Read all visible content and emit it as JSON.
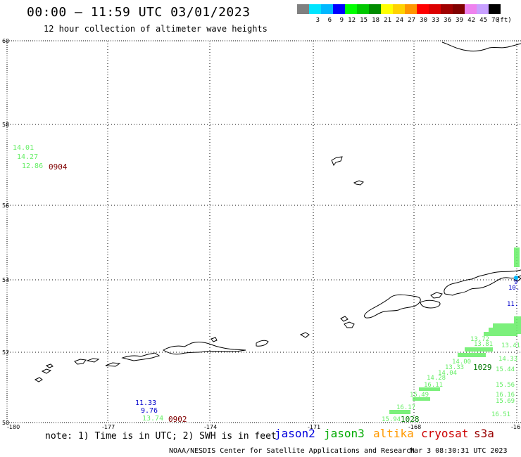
{
  "header": {
    "title": "00:00 – 11:59 UTC 03/01/2023",
    "subtitle": "12 hour collection of altimeter wave heights"
  },
  "legend": {
    "unit": "(ft)",
    "swatches": [
      {
        "color": "#808080",
        "label": ""
      },
      {
        "color": "#00e5ff",
        "label": "3"
      },
      {
        "color": "#00b8ff",
        "label": "6"
      },
      {
        "color": "#0000ff",
        "label": "9"
      },
      {
        "color": "#00ff00",
        "label": "12"
      },
      {
        "color": "#00c800",
        "label": "15"
      },
      {
        "color": "#008c00",
        "label": "18"
      },
      {
        "color": "#ffff00",
        "label": "21"
      },
      {
        "color": "#ffd200",
        "label": "24"
      },
      {
        "color": "#ff9600",
        "label": "27"
      },
      {
        "color": "#ff0000",
        "label": "30"
      },
      {
        "color": "#dc0000",
        "label": "33"
      },
      {
        "color": "#a00000",
        "label": "36"
      },
      {
        "color": "#800000",
        "label": "39"
      },
      {
        "color": "#ee82ee",
        "label": "42"
      },
      {
        "color": "#c8a0ff",
        "label": "45"
      },
      {
        "color": "#000000",
        "label": "70"
      }
    ]
  },
  "axes": {
    "lat_labels": [
      "60",
      "58",
      "56",
      "54",
      "52",
      "50"
    ],
    "lon_labels": [
      "-180",
      "-177",
      "-174",
      "-171",
      "-168",
      "-16"
    ]
  },
  "observations": [
    {
      "label": "14.01",
      "color": "#66ee66"
    },
    {
      "label": "14.27",
      "color": "#66ee66"
    },
    {
      "label": "12.86",
      "color": "#66ee66"
    },
    {
      "label": "0904",
      "color": "#800000"
    },
    {
      "label": "11.33",
      "color": "#0000cc"
    },
    {
      "label": "9.76",
      "color": "#0000cc"
    },
    {
      "label": "13.74",
      "color": "#66ee66"
    },
    {
      "label": "0902",
      "color": "#800000"
    },
    {
      "label": "1029",
      "color": "#007700"
    },
    {
      "label": "1028",
      "color": "#007700"
    },
    {
      "label": "15.44",
      "color": "#66ee66"
    },
    {
      "label": "15.56",
      "color": "#66ee66"
    },
    {
      "label": "16.16",
      "color": "#66ee66"
    },
    {
      "label": "15.69",
      "color": "#66ee66"
    },
    {
      "label": "16.51",
      "color": "#66ee66"
    },
    {
      "label": "15.94",
      "color": "#66ee66"
    },
    {
      "label": "16.17",
      "color": "#66ee66"
    },
    {
      "label": "15.49",
      "color": "#66ee66"
    },
    {
      "label": "16.11",
      "color": "#66ee66"
    },
    {
      "label": "14.28",
      "color": "#66ee66"
    },
    {
      "label": "14.04",
      "color": "#66ee66"
    },
    {
      "label": "13.33",
      "color": "#66ee66"
    },
    {
      "label": "14.00",
      "color": "#66ee66"
    },
    {
      "label": "13.72",
      "color": "#66ee66"
    },
    {
      "label": "13.81",
      "color": "#66ee66"
    },
    {
      "label": "14.33",
      "color": "#66ee66"
    },
    {
      "label": "13.41",
      "color": "#66ee66"
    },
    {
      "label": "10.",
      "color": "#0000cc"
    },
    {
      "label": "11.",
      "color": "#0000cc"
    },
    {
      "label": "9",
      "color": "#0000cc"
    }
  ],
  "footer": {
    "note": "note: 1) Time is in UTC; 2) SWH is in feet",
    "sat_jason2": "jason2",
    "sat_jason3": "jason3",
    "sat_altika": "altika",
    "sat_cryosat": "cryosat",
    "sat_s3a": "s3a",
    "credit": "NOAA/NESDIS Center for Satellite Applications and Research",
    "timestamp": "Mar  3 08:30:31 UTC 2023"
  }
}
